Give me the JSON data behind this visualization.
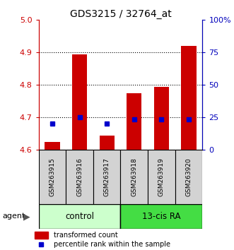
{
  "title": "GDS3215 / 32764_at",
  "samples": [
    "GSM263915",
    "GSM263916",
    "GSM263917",
    "GSM263918",
    "GSM263919",
    "GSM263920"
  ],
  "transformed_counts": [
    4.625,
    4.895,
    4.645,
    4.775,
    4.795,
    4.92
  ],
  "percentile_ranks": [
    4.682,
    4.7,
    4.682,
    4.695,
    4.695,
    4.695
  ],
  "ylim_left": [
    4.6,
    5.0
  ],
  "ylim_right": [
    0,
    100
  ],
  "yticks_left": [
    4.6,
    4.7,
    4.8,
    4.9,
    5.0
  ],
  "yticks_right": [
    0,
    25,
    50,
    75,
    100
  ],
  "ytick_labels_right": [
    "0",
    "25",
    "50",
    "75",
    "100%"
  ],
  "bar_color": "#cc0000",
  "dot_color": "#0000cc",
  "bar_bottom": 4.6,
  "ctrl_color": "#ccffcc",
  "ra_color": "#44dd44",
  "left_tick_color": "#cc0000",
  "right_tick_color": "#0000bb",
  "legend_bar_label": "transformed count",
  "legend_dot_label": "percentile rank within the sample",
  "agent_label": "agent"
}
